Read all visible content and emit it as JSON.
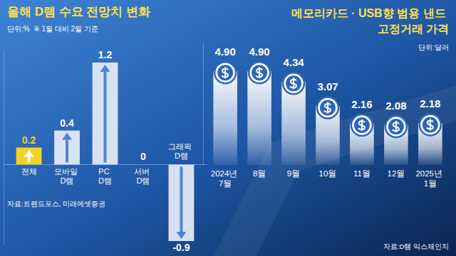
{
  "chart_data": [
    {
      "type": "bar",
      "title": "올해 D램 수요 전망치 변화",
      "subtitle": "단위:%  ※ 1월 대비 2월 기준",
      "source": "자료:트렌드포스, 미래에셋증권",
      "categories": [
        "전체",
        "모바일 D램",
        "PC D램",
        "서버 D램",
        "그래픽 D램"
      ],
      "values": [
        0.2,
        0.4,
        1.2,
        0,
        -0.9
      ],
      "colors": [
        "#f2d321",
        "#e6edf7",
        "#e6edf7",
        "#e6edf7",
        "#e6edf7"
      ],
      "ylim": [
        -0.95,
        1.35
      ],
      "yticks": [],
      "tick_labels": "x",
      "data_labels": true
    },
    {
      "type": "bar",
      "title": "메모리카드 · USB향 범용 낸드 고정거래 가격",
      "subtitle": "단위:달러",
      "source": "자료:D램 익스체인지",
      "categories": [
        "2024년 7월",
        "8월",
        "9월",
        "10월",
        "11월",
        "12월",
        "2025년 1월"
      ],
      "values": [
        4.9,
        4.9,
        4.34,
        3.07,
        2.16,
        2.08,
        2.18
      ],
      "value_labels": [
        "4.90",
        "4.90",
        "4.34",
        "3.07",
        "2.16",
        "2.08",
        "2.18"
      ],
      "color": "#ffffff",
      "ylim": [
        0,
        6.4
      ],
      "yticks": [],
      "tick_labels": "x",
      "data_labels": true
    }
  ]
}
